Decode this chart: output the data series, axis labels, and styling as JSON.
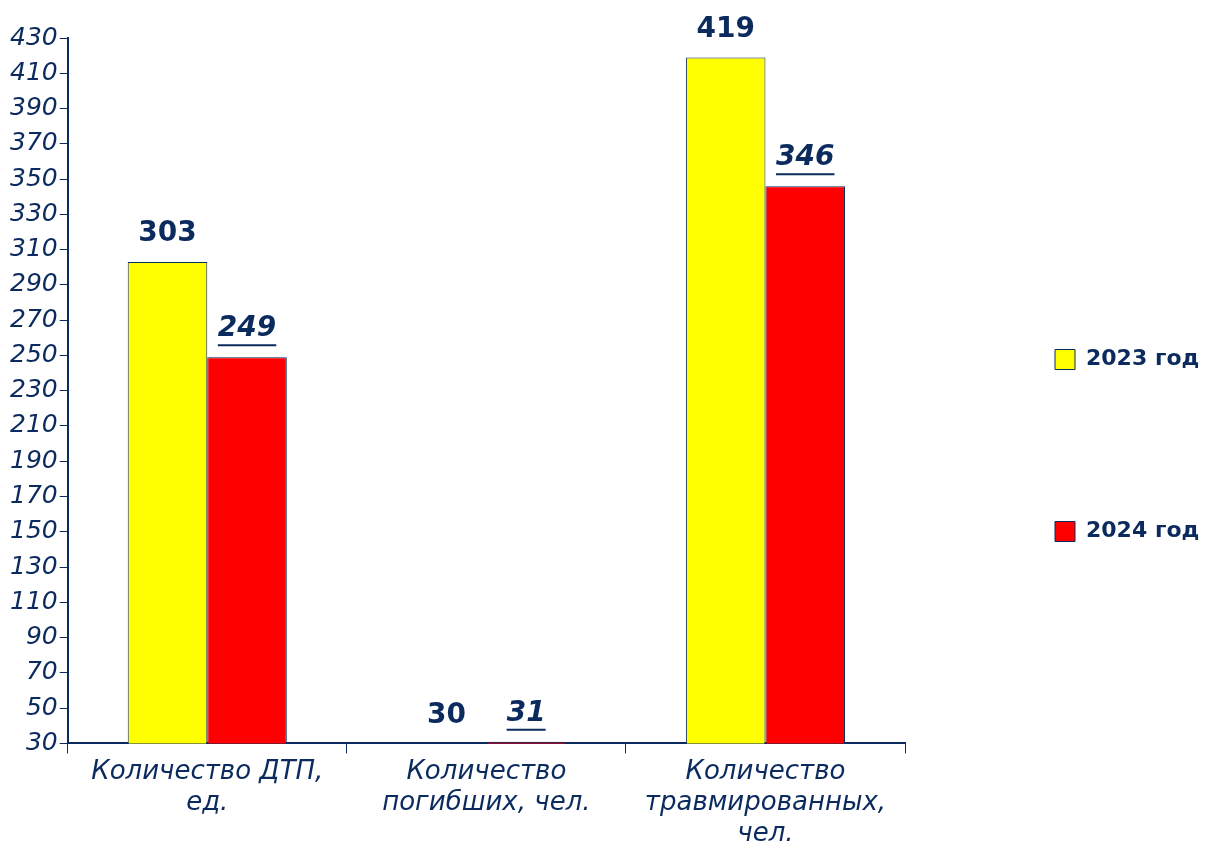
{
  "chart_data": {
    "type": "bar",
    "categories": [
      "Количество ДТП, ед.",
      "Количество погибших, чел.",
      "Количество травмированных, чел."
    ],
    "series": [
      {
        "name": "2023 год",
        "color": "#ffff00",
        "values": [
          303,
          30,
          419
        ]
      },
      {
        "name": "2024 год",
        "color": "#ff0000",
        "values": [
          249,
          31,
          346
        ]
      }
    ],
    "ylim": [
      30,
      430
    ],
    "yticks": [
      30,
      50,
      70,
      90,
      110,
      130,
      150,
      170,
      190,
      210,
      230,
      250,
      270,
      290,
      310,
      330,
      350,
      370,
      390,
      410,
      430
    ],
    "data_labels": true,
    "legend": "right",
    "grid": false
  }
}
